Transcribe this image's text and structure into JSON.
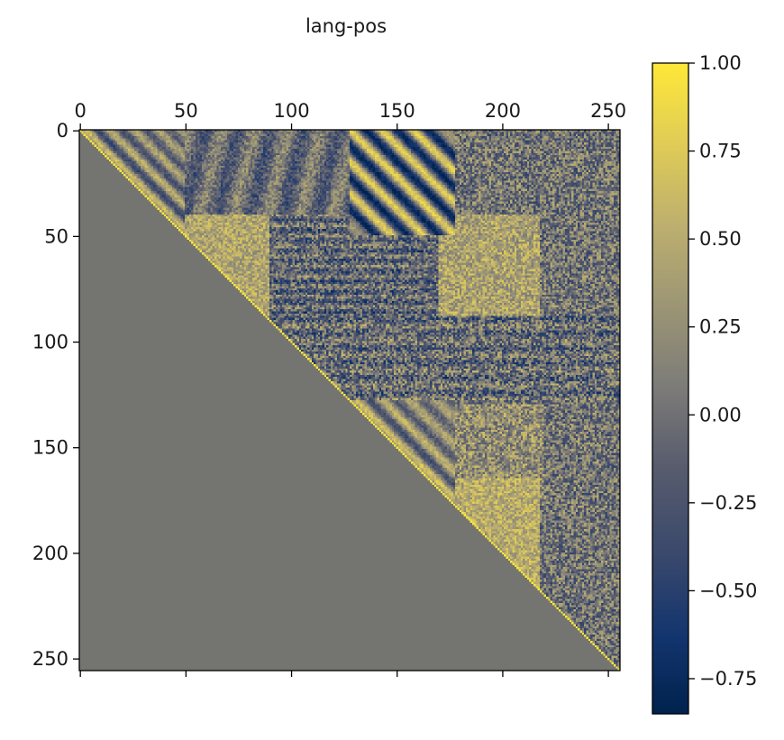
{
  "chart_data": {
    "type": "heatmap",
    "title": "lang-pos",
    "matrix_size": 256,
    "structure": "upper-triangular cosine-similarity matrix; lower triangle masked (filled with value 0 → gray)",
    "diagonal_value": 1.0,
    "x_ticks": [
      0,
      50,
      100,
      150,
      200,
      250
    ],
    "y_ticks": [
      0,
      50,
      100,
      150,
      200,
      250
    ],
    "x_tick_labels": [
      "0",
      "50",
      "100",
      "150",
      "200",
      "250"
    ],
    "y_tick_labels": [
      "0",
      "50",
      "100",
      "150",
      "200",
      "250"
    ],
    "x_axis_position": "top",
    "colormap": "cividis",
    "colorbar": {
      "vmin": -0.85,
      "vmax": 1.0,
      "ticks": [
        1.0,
        0.75,
        0.5,
        0.25,
        0.0,
        -0.25,
        -0.5,
        -0.75
      ],
      "tick_labels": [
        "1.00",
        "0.75",
        "0.50",
        "0.25",
        "0.00",
        "−0.25",
        "−0.50",
        "−0.75"
      ]
    },
    "regions": [
      {
        "rows": [
          0,
          50
        ],
        "cols": [
          0,
          50
        ],
        "pattern": "diagonal stripes, positive/negative alternating"
      },
      {
        "rows": [
          0,
          50
        ],
        "cols": [
          128,
          178
        ],
        "pattern": "strong diagonal stripes, values -0.8 to 0.9"
      },
      {
        "rows": [
          40,
          88
        ],
        "cols": [
          40,
          90
        ],
        "pattern": "mostly positive ~0.4-0.6"
      },
      {
        "rows": [
          40,
          88
        ],
        "cols": [
          170,
          218
        ],
        "pattern": "mostly positive ~0.4-0.6"
      },
      {
        "rows": [
          128,
          178
        ],
        "cols": [
          128,
          178
        ],
        "pattern": "diagonal stripes"
      },
      {
        "rows": [
          165,
          218
        ],
        "cols": [
          165,
          218
        ],
        "pattern": "mostly positive ~0.5"
      },
      {
        "rows": [
          88,
          128
        ],
        "cols": [
          88,
          256
        ],
        "pattern": "horizontal banded noise, near 0"
      }
    ],
    "colors": {
      "masked": "#747570",
      "cmap_low": "#00224e",
      "cmap_mid": "#7c7b78",
      "cmap_high": "#fee838"
    }
  }
}
